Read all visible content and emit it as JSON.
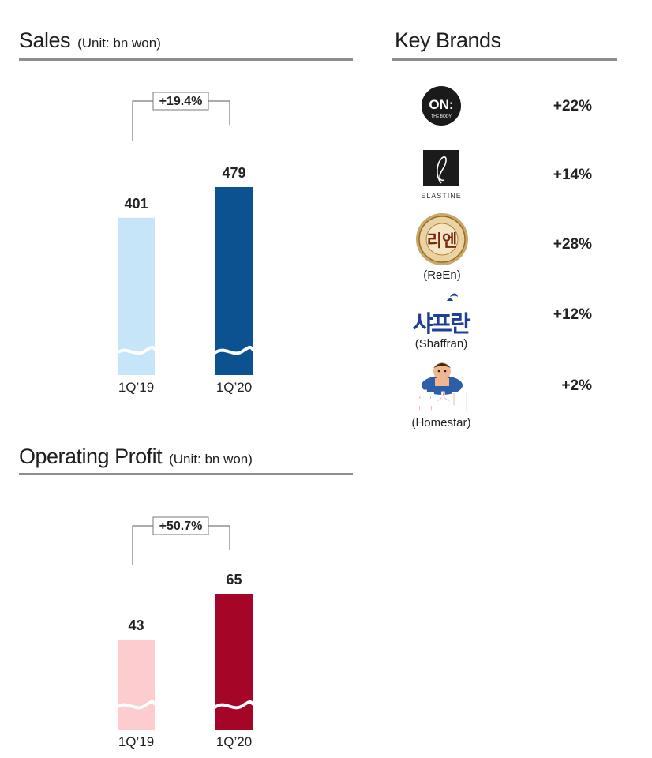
{
  "sales": {
    "title": "Sales",
    "unit": "(Unit: bn won)"
  },
  "operating_profit": {
    "title": "Operating Profit",
    "unit": "(Unit: bn won)"
  },
  "key_brands": {
    "title": "Key Brands",
    "items": [
      {
        "name": "ON: THE BODY",
        "logo_text": "ON:",
        "logo_sub": "THE BODY",
        "caption": "",
        "change": "+22%"
      },
      {
        "name": "ELASTINE",
        "logo_text": "e",
        "logo_sub": "ELASTINE",
        "caption": "",
        "change": "+14%"
      },
      {
        "name": "ReEn",
        "logo_text": "리엔",
        "logo_sub": "",
        "caption": "(ReEn)",
        "change": "+28%"
      },
      {
        "name": "Shaffran",
        "logo_text": "샤프란",
        "logo_sub": "",
        "caption": "(Shaffran)",
        "change": "+12%"
      },
      {
        "name": "Homestar",
        "logo_text": "홈스타",
        "logo_sub": "",
        "caption": "(Homestar)",
        "change": "+2%"
      }
    ]
  },
  "colors": {
    "sales_prev": "#c7e5f8",
    "sales_curr": "#0c5190",
    "op_prev": "#fdcccf",
    "op_curr": "#a50627",
    "rule": "#8e8e8e"
  },
  "chart_data": [
    {
      "type": "bar",
      "title": "Sales",
      "unit": "(Unit: bn won)",
      "categories": [
        "1Q’19",
        "1Q’20"
      ],
      "values": [
        401,
        479
      ],
      "value_labels": [
        "401",
        "479"
      ],
      "growth_label": "+19.4%",
      "axis_break": true
    },
    {
      "type": "bar",
      "title": "Operating Profit",
      "unit": "(Unit: bn won)",
      "categories": [
        "1Q’19",
        "1Q’20"
      ],
      "values": [
        43,
        65
      ],
      "value_labels": [
        "43",
        "65"
      ],
      "growth_label": "+50.7%",
      "axis_break": true
    }
  ]
}
